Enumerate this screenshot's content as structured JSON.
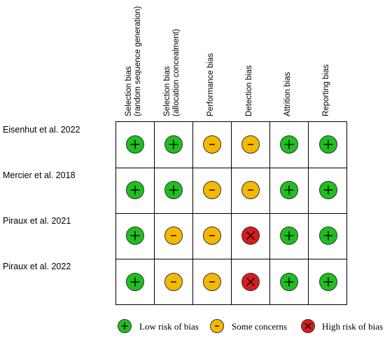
{
  "columns": [
    {
      "line1": "Selection bias",
      "line2": "(random sequence generation)"
    },
    {
      "line1": "Selection bias",
      "line2": "(allocation concealment)"
    },
    {
      "line1": "Performance bias",
      "line2": ""
    },
    {
      "line1": "Detection bias",
      "line2": ""
    },
    {
      "line1": "Attrition bias",
      "line2": ""
    },
    {
      "line1": "Reporting bias",
      "line2": ""
    }
  ],
  "rows": [
    {
      "study": "Eisenhut et al. 2022",
      "ratings": [
        "low",
        "low",
        "some",
        "some",
        "low",
        "low"
      ]
    },
    {
      "study": "Mercier et al. 2018",
      "ratings": [
        "low",
        "low",
        "some",
        "some",
        "low",
        "low"
      ]
    },
    {
      "study": "Piraux et al. 2021",
      "ratings": [
        "low",
        "some",
        "some",
        "high",
        "low",
        "low"
      ]
    },
    {
      "study": "Piraux et al. 2022",
      "ratings": [
        "low",
        "some",
        "some",
        "high",
        "low",
        "low"
      ]
    }
  ],
  "legend": [
    {
      "key": "low",
      "label": "Low risk of bias"
    },
    {
      "key": "some",
      "label": "Some  concerns"
    },
    {
      "key": "high",
      "label": "High risk of bias"
    }
  ],
  "colors": {
    "low": "#1fbf1f",
    "some": "#f5b800",
    "high": "#d81c1c"
  },
  "icons": {
    "low": "plus-icon",
    "some": "minus-icon",
    "high": "cross-icon"
  }
}
